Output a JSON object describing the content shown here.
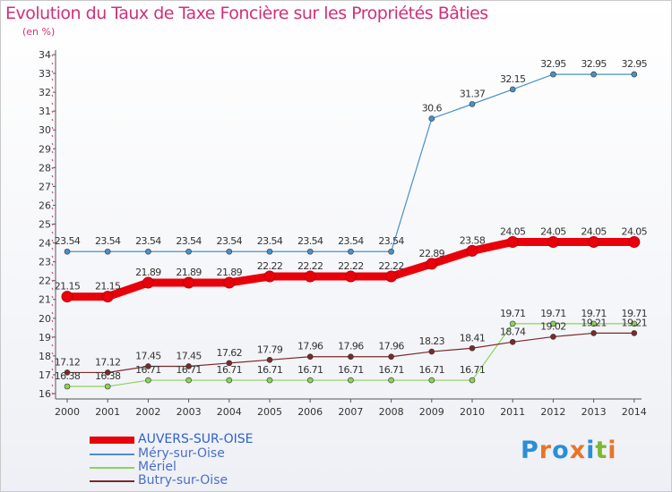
{
  "title": "Evolution du Taux de Taxe Foncière sur les Propriétés Bâties",
  "unit_label": "(en %)",
  "brand": {
    "letters": [
      "P",
      "r",
      "o",
      "x",
      "i",
      "t",
      "i"
    ],
    "colors": [
      "#2a8fd6",
      "#e8742a",
      "#2a8fd6",
      "#e8742a",
      "#2a8fd6",
      "#7cb832",
      "#e8742a"
    ]
  },
  "chart_data": {
    "type": "line",
    "title": "Evolution du Taux de Taxe Foncière sur les Propriétés Bâties",
    "ylabel": "(en %)",
    "x": [
      "2000",
      "2001",
      "2002",
      "2003",
      "2004",
      "2005",
      "2006",
      "2007",
      "2008",
      "2009",
      "2010",
      "2011",
      "2012",
      "2013",
      "2014"
    ],
    "ylim": [
      16,
      34
    ],
    "yticks": [
      16,
      17,
      18,
      19,
      20,
      21,
      22,
      23,
      24,
      25,
      26,
      27,
      28,
      29,
      30,
      31,
      32,
      33,
      34
    ],
    "grid": false,
    "legend_position": "bottom-left",
    "series": [
      {
        "name": "AUVERS-SUR-OISE",
        "color": "#e8000b",
        "values": [
          21.15,
          21.15,
          21.89,
          21.89,
          21.89,
          22.22,
          22.22,
          22.22,
          22.22,
          22.89,
          23.58,
          24.05,
          24.05,
          24.05,
          24.05
        ],
        "labels": [
          "21.15",
          "21.15",
          "21.89",
          "21.89",
          "21.89",
          "22.22",
          "22.22",
          "22.22",
          "22.22",
          "22.89",
          "23.58",
          "24.05",
          "24.05",
          "24.05",
          "24.05"
        ]
      },
      {
        "name": "Méry-sur-Oise",
        "color": "#4a90c8",
        "values": [
          23.54,
          23.54,
          23.54,
          23.54,
          23.54,
          23.54,
          23.54,
          23.54,
          23.54,
          30.6,
          31.37,
          32.15,
          32.95,
          32.95,
          32.95
        ],
        "labels": [
          "23.54",
          "23.54",
          "23.54",
          "23.54",
          "23.54",
          "23.54",
          "23.54",
          "23.54",
          "23.54",
          "30.6",
          "31.37",
          "32.15",
          "32.95",
          "32.95",
          "32.95"
        ]
      },
      {
        "name": "Mériel",
        "color": "#8cd25a",
        "values": [
          16.38,
          16.38,
          16.71,
          16.71,
          16.71,
          16.71,
          16.71,
          16.71,
          16.71,
          16.71,
          16.71,
          19.71,
          19.71,
          19.71,
          19.71
        ],
        "labels": [
          "16.38",
          "16.38",
          "16.71",
          "16.71",
          "16.71",
          "16.71",
          "16.71",
          "16.71",
          "16.71",
          "16.71",
          "16.71",
          "19.71",
          "19.71",
          "19.71",
          "19.71"
        ]
      },
      {
        "name": "Butry-sur-Oise",
        "color": "#7a2a2a",
        "values": [
          17.12,
          17.12,
          17.45,
          17.45,
          17.62,
          17.79,
          17.96,
          17.96,
          17.96,
          18.23,
          18.41,
          18.74,
          19.02,
          19.21,
          19.21
        ],
        "labels": [
          "17.12",
          "17.12",
          "17.45",
          "17.45",
          "17.62",
          "17.79",
          "17.96",
          "17.96",
          "17.96",
          "18.23",
          "18.41",
          "18.74",
          "19.02",
          "19.21",
          "19.21"
        ]
      }
    ]
  }
}
